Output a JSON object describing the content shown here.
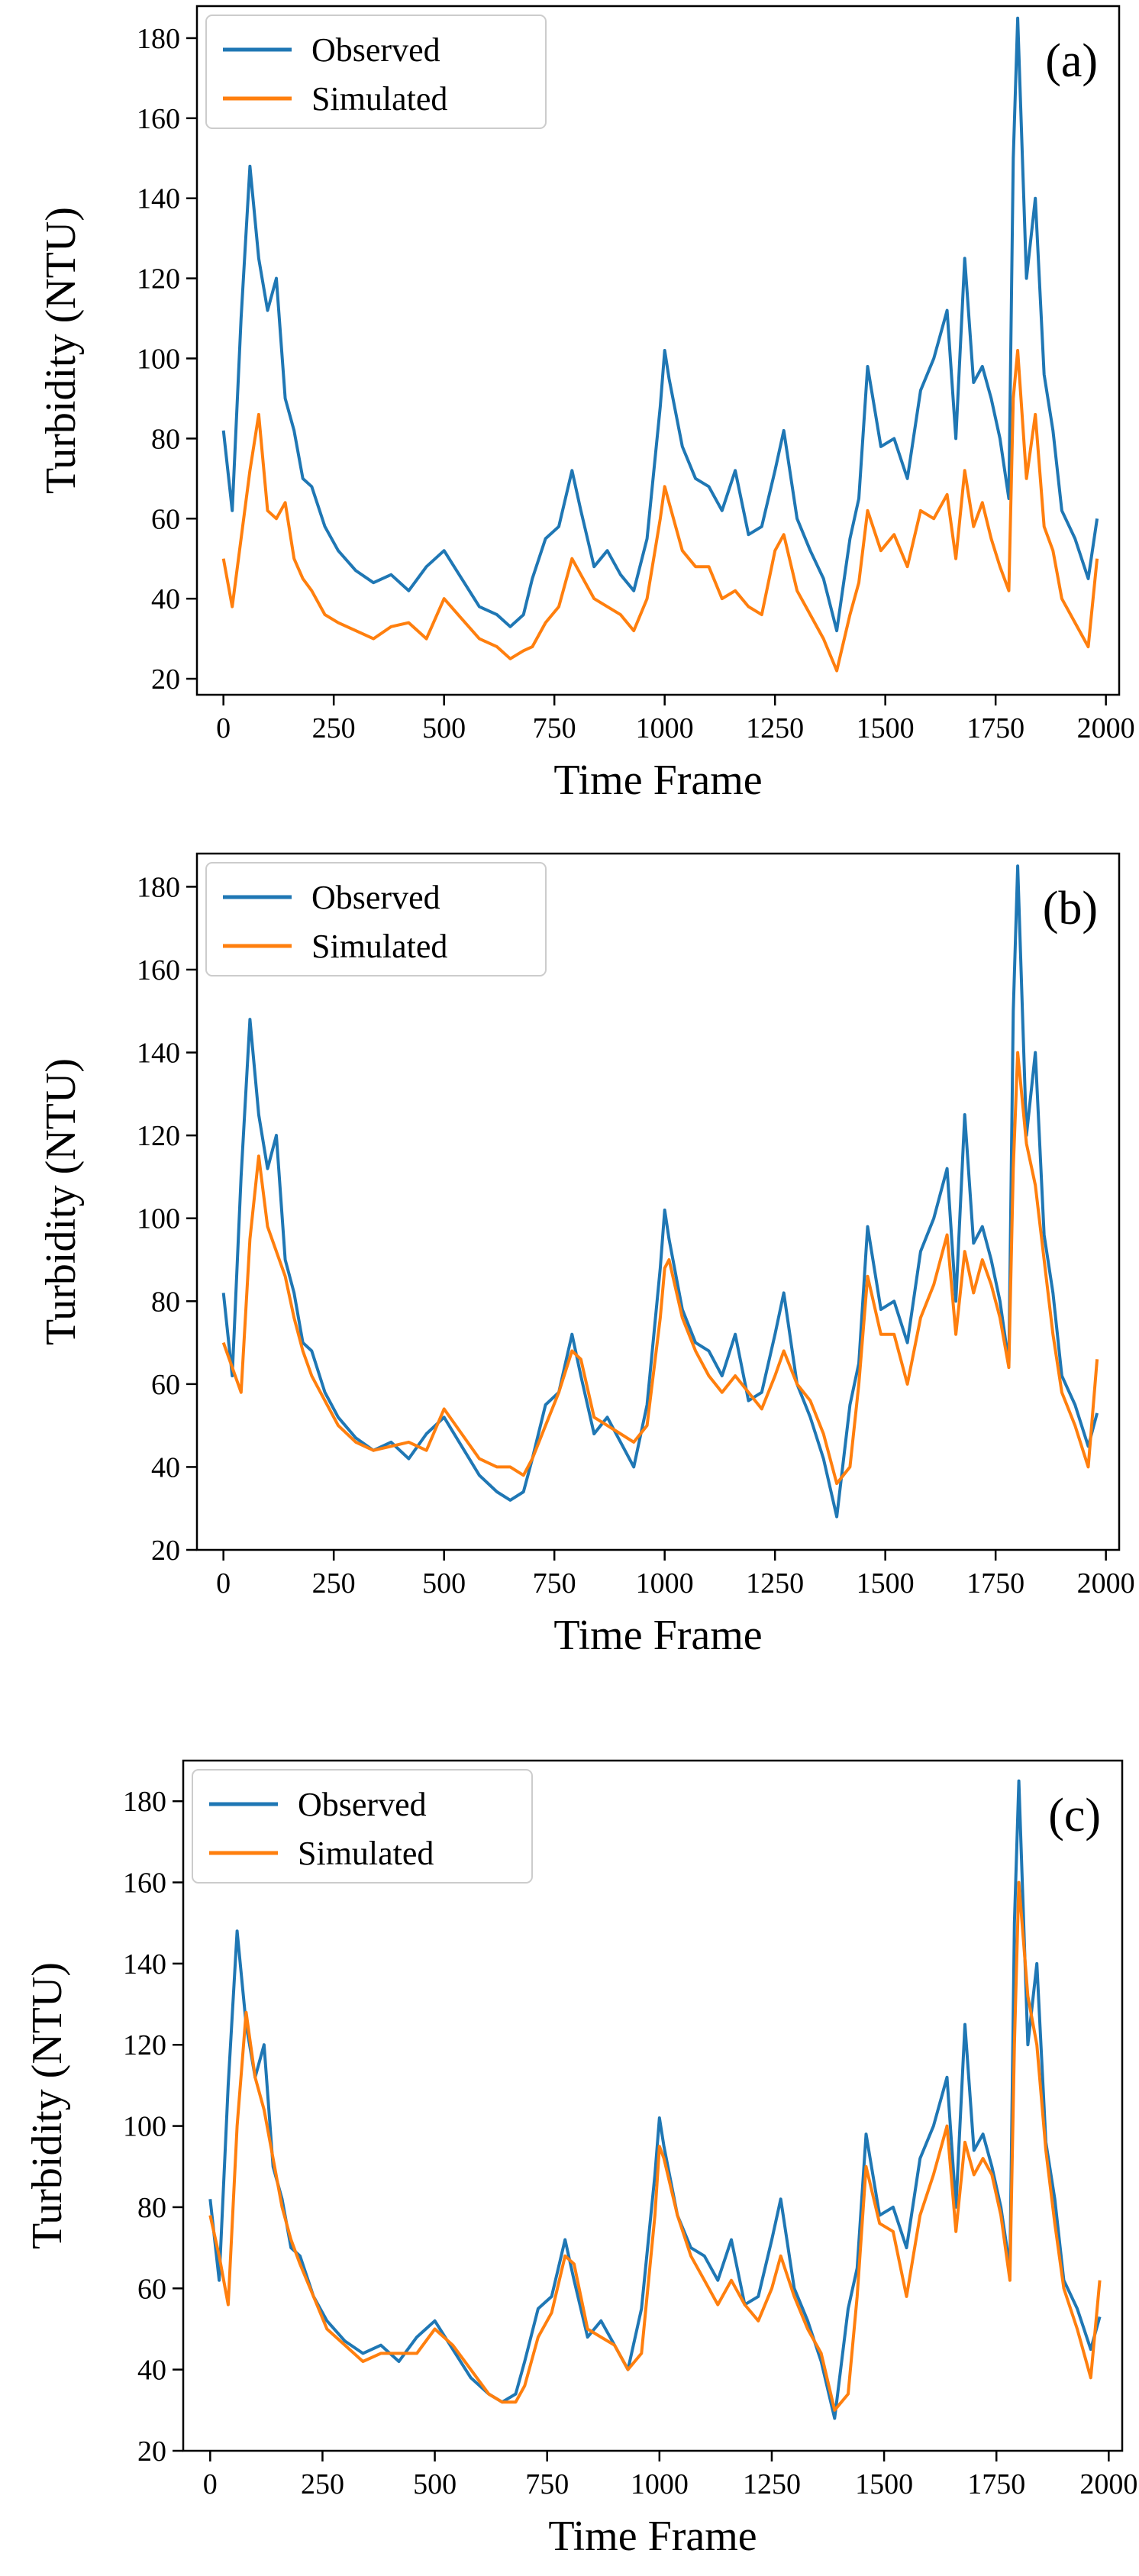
{
  "figure": {
    "description_free": true
  },
  "colors": {
    "observed": "#1f77b4",
    "simulated": "#ff7f0e"
  },
  "chart_data": [
    {
      "type": "line",
      "panel_label": "(a)",
      "xlabel": "Time Frame",
      "ylabel": "Turbidity (NTU)",
      "xlim": [
        -60,
        2030
      ],
      "ylim": [
        16,
        188
      ],
      "xticks": [
        0,
        250,
        500,
        750,
        1000,
        1250,
        1500,
        1750,
        2000
      ],
      "yticks": [
        20,
        40,
        60,
        80,
        100,
        120,
        140,
        160,
        180
      ],
      "legend": {
        "position": "top-left",
        "entries": [
          "Observed",
          "Simulated"
        ]
      },
      "series": [
        {
          "name": "Observed",
          "x": [
            0,
            20,
            40,
            60,
            80,
            100,
            120,
            140,
            160,
            180,
            200,
            230,
            260,
            300,
            340,
            380,
            420,
            460,
            500,
            540,
            580,
            620,
            650,
            680,
            700,
            730,
            760,
            790,
            810,
            840,
            870,
            900,
            930,
            960,
            990,
            1000,
            1010,
            1040,
            1070,
            1100,
            1130,
            1160,
            1190,
            1220,
            1250,
            1270,
            1300,
            1330,
            1360,
            1390,
            1420,
            1440,
            1460,
            1490,
            1520,
            1550,
            1580,
            1610,
            1640,
            1660,
            1680,
            1700,
            1720,
            1740,
            1760,
            1780,
            1790,
            1800,
            1820,
            1840,
            1860,
            1880,
            1900,
            1930,
            1960,
            1980
          ],
          "y": [
            82,
            62,
            110,
            148,
            125,
            112,
            120,
            90,
            82,
            70,
            68,
            58,
            52,
            47,
            44,
            46,
            42,
            48,
            52,
            45,
            38,
            36,
            33,
            36,
            45,
            55,
            58,
            72,
            62,
            48,
            52,
            46,
            42,
            55,
            88,
            102,
            95,
            78,
            70,
            68,
            62,
            72,
            56,
            58,
            72,
            82,
            60,
            52,
            45,
            32,
            55,
            65,
            98,
            78,
            80,
            70,
            92,
            100,
            112,
            80,
            125,
            94,
            98,
            90,
            80,
            65,
            150,
            185,
            120,
            140,
            96,
            82,
            62,
            55,
            45,
            60
          ]
        },
        {
          "name": "Simulated",
          "x": [
            0,
            20,
            40,
            60,
            80,
            100,
            120,
            140,
            160,
            180,
            200,
            230,
            260,
            300,
            340,
            380,
            420,
            460,
            500,
            540,
            580,
            620,
            650,
            680,
            700,
            730,
            760,
            790,
            810,
            840,
            870,
            900,
            930,
            960,
            990,
            1000,
            1010,
            1040,
            1070,
            1100,
            1130,
            1160,
            1190,
            1220,
            1250,
            1270,
            1300,
            1330,
            1360,
            1390,
            1420,
            1440,
            1460,
            1490,
            1520,
            1550,
            1580,
            1610,
            1640,
            1660,
            1680,
            1700,
            1720,
            1740,
            1760,
            1780,
            1790,
            1800,
            1820,
            1840,
            1860,
            1880,
            1900,
            1930,
            1960,
            1980
          ],
          "y": [
            50,
            38,
            55,
            72,
            86,
            62,
            60,
            64,
            50,
            45,
            42,
            36,
            34,
            32,
            30,
            33,
            34,
            30,
            40,
            35,
            30,
            28,
            25,
            27,
            28,
            34,
            38,
            50,
            46,
            40,
            38,
            36,
            32,
            40,
            60,
            68,
            64,
            52,
            48,
            48,
            40,
            42,
            38,
            36,
            52,
            56,
            42,
            36,
            30,
            22,
            36,
            44,
            62,
            52,
            56,
            48,
            62,
            60,
            66,
            50,
            72,
            58,
            64,
            55,
            48,
            42,
            90,
            102,
            70,
            86,
            58,
            52,
            40,
            34,
            28,
            50
          ]
        }
      ]
    },
    {
      "type": "line",
      "panel_label": "(b)",
      "xlabel": "Time Frame",
      "ylabel": "Turbidity (NTU)",
      "xlim": [
        -60,
        2030
      ],
      "ylim": [
        20,
        188
      ],
      "xticks": [
        0,
        250,
        500,
        750,
        1000,
        1250,
        1500,
        1750,
        2000
      ],
      "yticks": [
        20,
        40,
        60,
        80,
        100,
        120,
        140,
        160,
        180
      ],
      "legend": {
        "position": "top-left",
        "entries": [
          "Observed",
          "Simulated"
        ]
      },
      "series": [
        {
          "name": "Observed",
          "x": [
            0,
            20,
            40,
            60,
            80,
            100,
            120,
            140,
            160,
            180,
            200,
            230,
            260,
            300,
            340,
            380,
            420,
            460,
            500,
            540,
            580,
            620,
            650,
            680,
            700,
            730,
            760,
            790,
            810,
            840,
            870,
            900,
            930,
            960,
            990,
            1000,
            1010,
            1040,
            1070,
            1100,
            1130,
            1160,
            1190,
            1220,
            1250,
            1270,
            1300,
            1330,
            1360,
            1390,
            1420,
            1440,
            1460,
            1490,
            1520,
            1550,
            1580,
            1610,
            1640,
            1660,
            1680,
            1700,
            1720,
            1740,
            1760,
            1780,
            1790,
            1800,
            1820,
            1840,
            1860,
            1880,
            1900,
            1930,
            1960,
            1980
          ],
          "y": [
            82,
            62,
            110,
            148,
            125,
            112,
            120,
            90,
            82,
            70,
            68,
            58,
            52,
            47,
            44,
            46,
            42,
            48,
            52,
            45,
            38,
            34,
            32,
            34,
            42,
            55,
            58,
            72,
            62,
            48,
            52,
            46,
            40,
            55,
            88,
            102,
            95,
            78,
            70,
            68,
            62,
            72,
            56,
            58,
            72,
            82,
            60,
            52,
            42,
            28,
            55,
            65,
            98,
            78,
            80,
            70,
            92,
            100,
            112,
            80,
            125,
            94,
            98,
            90,
            80,
            65,
            150,
            185,
            120,
            140,
            96,
            82,
            62,
            55,
            45,
            53
          ]
        },
        {
          "name": "Simulated",
          "x": [
            0,
            20,
            40,
            60,
            80,
            100,
            120,
            140,
            160,
            180,
            200,
            230,
            260,
            300,
            340,
            380,
            420,
            460,
            500,
            540,
            580,
            620,
            650,
            680,
            700,
            730,
            760,
            790,
            810,
            840,
            870,
            900,
            930,
            960,
            990,
            1000,
            1010,
            1040,
            1070,
            1100,
            1130,
            1160,
            1190,
            1220,
            1250,
            1270,
            1300,
            1330,
            1360,
            1390,
            1420,
            1440,
            1460,
            1490,
            1520,
            1550,
            1580,
            1610,
            1640,
            1660,
            1680,
            1700,
            1720,
            1740,
            1760,
            1780,
            1790,
            1800,
            1820,
            1840,
            1860,
            1880,
            1900,
            1930,
            1960,
            1980
          ],
          "y": [
            70,
            64,
            58,
            95,
            115,
            98,
            92,
            86,
            76,
            68,
            62,
            56,
            50,
            46,
            44,
            45,
            46,
            44,
            54,
            48,
            42,
            40,
            40,
            38,
            42,
            50,
            58,
            68,
            66,
            52,
            50,
            48,
            46,
            50,
            76,
            88,
            90,
            76,
            68,
            62,
            58,
            62,
            58,
            54,
            62,
            68,
            60,
            56,
            48,
            36,
            40,
            60,
            86,
            72,
            72,
            60,
            76,
            84,
            96,
            72,
            92,
            82,
            90,
            84,
            76,
            64,
            112,
            140,
            118,
            108,
            90,
            72,
            58,
            50,
            40,
            66
          ]
        }
      ]
    },
    {
      "type": "line",
      "panel_label": "(c)",
      "xlabel": "Time Frame",
      "ylabel": "Turbidity (NTU)",
      "xlim": [
        -60,
        2030
      ],
      "ylim": [
        20,
        190
      ],
      "xticks": [
        0,
        250,
        500,
        750,
        1000,
        1250,
        1500,
        1750,
        2000
      ],
      "yticks": [
        20,
        40,
        60,
        80,
        100,
        120,
        140,
        160,
        180
      ],
      "legend": {
        "position": "top-left",
        "entries": [
          "Observed",
          "Simulated"
        ]
      },
      "series": [
        {
          "name": "Observed",
          "x": [
            0,
            20,
            40,
            60,
            80,
            100,
            120,
            140,
            160,
            180,
            200,
            230,
            260,
            300,
            340,
            380,
            420,
            460,
            500,
            540,
            580,
            620,
            650,
            680,
            700,
            730,
            760,
            790,
            810,
            840,
            870,
            900,
            930,
            960,
            990,
            1000,
            1010,
            1040,
            1070,
            1100,
            1130,
            1160,
            1190,
            1220,
            1250,
            1270,
            1300,
            1330,
            1360,
            1390,
            1420,
            1440,
            1460,
            1490,
            1520,
            1550,
            1580,
            1610,
            1640,
            1660,
            1680,
            1700,
            1720,
            1740,
            1760,
            1780,
            1790,
            1800,
            1820,
            1840,
            1860,
            1880,
            1900,
            1930,
            1960,
            1980
          ],
          "y": [
            82,
            62,
            110,
            148,
            125,
            112,
            120,
            90,
            82,
            70,
            68,
            58,
            52,
            47,
            44,
            46,
            42,
            48,
            52,
            45,
            38,
            34,
            32,
            34,
            42,
            55,
            58,
            72,
            62,
            48,
            52,
            46,
            40,
            55,
            88,
            102,
            95,
            78,
            70,
            68,
            62,
            72,
            56,
            58,
            72,
            82,
            60,
            52,
            42,
            28,
            55,
            65,
            98,
            78,
            80,
            70,
            92,
            100,
            112,
            80,
            125,
            94,
            98,
            90,
            80,
            65,
            150,
            185,
            120,
            140,
            96,
            82,
            62,
            55,
            45,
            53
          ]
        },
        {
          "name": "Simulated",
          "x": [
            0,
            20,
            40,
            60,
            80,
            100,
            120,
            140,
            160,
            180,
            200,
            230,
            260,
            300,
            340,
            380,
            420,
            460,
            500,
            540,
            580,
            620,
            650,
            680,
            700,
            730,
            760,
            790,
            810,
            840,
            870,
            900,
            930,
            960,
            990,
            1000,
            1010,
            1040,
            1070,
            1100,
            1130,
            1160,
            1190,
            1220,
            1250,
            1270,
            1300,
            1330,
            1360,
            1390,
            1420,
            1440,
            1460,
            1490,
            1520,
            1550,
            1580,
            1610,
            1640,
            1660,
            1680,
            1700,
            1720,
            1740,
            1760,
            1780,
            1790,
            1800,
            1820,
            1840,
            1860,
            1880,
            1900,
            1930,
            1960,
            1980
          ],
          "y": [
            78,
            68,
            56,
            100,
            128,
            112,
            104,
            92,
            80,
            72,
            66,
            58,
            50,
            46,
            42,
            44,
            44,
            44,
            50,
            46,
            40,
            34,
            32,
            32,
            36,
            48,
            54,
            68,
            66,
            50,
            48,
            46,
            40,
            44,
            78,
            95,
            92,
            78,
            68,
            62,
            56,
            62,
            56,
            52,
            60,
            68,
            58,
            50,
            44,
            30,
            34,
            58,
            90,
            76,
            74,
            58,
            78,
            88,
            100,
            74,
            96,
            88,
            92,
            88,
            78,
            62,
            120,
            160,
            132,
            120,
            94,
            76,
            60,
            50,
            38,
            62
          ]
        }
      ]
    }
  ]
}
